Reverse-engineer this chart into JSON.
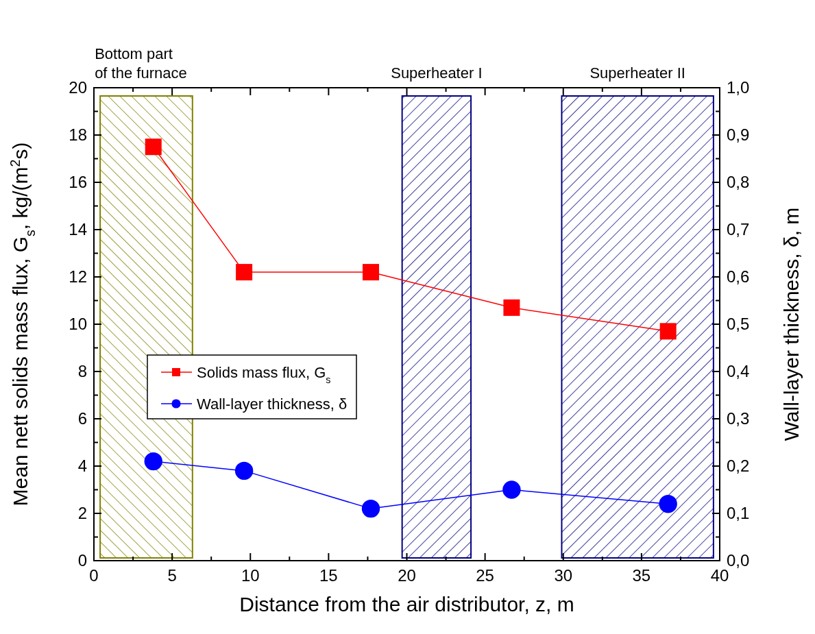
{
  "chart_data": {
    "type": "line",
    "xlabel": "Distance from the air distributor, z, m",
    "ylabel": "Mean nett solids mass flux, G$_{s}$, kg/(m$^{2}$s)",
    "y2label": "Wall-layer thickness, δ, m",
    "x": [
      3.8,
      9.6,
      17.7,
      26.7,
      36.7
    ],
    "series": [
      {
        "name": "Solids mass flux, G$_{s}$",
        "color": "#ff0000",
        "marker": "square",
        "values": [
          17.5,
          12.2,
          12.2,
          10.7,
          9.7
        ]
      },
      {
        "name": "Wall-layer thickness, δ",
        "color": "#0000ff",
        "marker": "circle",
        "axis": "y2",
        "values": [
          0.21,
          0.19,
          0.11,
          0.15,
          0.12
        ]
      }
    ],
    "xlim": [
      0,
      40
    ],
    "xticks": [
      0,
      {
        "value": 2.5,
        "label": null
      },
      5,
      {
        "value": 7.5,
        "label": null
      },
      10,
      {
        "value": 12.5,
        "label": null
      },
      15,
      {
        "value": 17.5,
        "label": null
      },
      20,
      {
        "value": 22.5,
        "label": null
      },
      25,
      {
        "value": 27.5,
        "label": null
      },
      30,
      {
        "value": 32.5,
        "label": null
      },
      35,
      {
        "value": 37.5,
        "label": null
      },
      40
    ],
    "ylim": [
      0,
      20
    ],
    "yticks": [
      0,
      {
        "value": 1,
        "label": null
      },
      2,
      {
        "value": 3,
        "label": null
      },
      4,
      {
        "value": 5,
        "label": null
      },
      6,
      {
        "value": 7,
        "label": null
      },
      8,
      {
        "value": 9,
        "label": null
      },
      10,
      {
        "value": 11,
        "label": null
      },
      12,
      {
        "value": 13,
        "label": null
      },
      14,
      {
        "value": 15,
        "label": null
      },
      16,
      {
        "value": 17,
        "label": null
      },
      18,
      {
        "value": 19,
        "label": null
      },
      20
    ],
    "y2lim": [
      0,
      1
    ],
    "y2ticks": [
      {
        "value": 0,
        "label": "0,0"
      },
      {
        "value": 0.05,
        "label": null
      },
      {
        "value": 0.1,
        "label": "0,1"
      },
      {
        "value": 0.15,
        "label": null
      },
      {
        "value": 0.2,
        "label": "0,2"
      },
      {
        "value": 0.25,
        "label": null
      },
      {
        "value": 0.3,
        "label": "0,3"
      },
      {
        "value": 0.35,
        "label": null
      },
      {
        "value": 0.4,
        "label": "0,4"
      },
      {
        "value": 0.45,
        "label": null
      },
      {
        "value": 0.5,
        "label": "0,5"
      },
      {
        "value": 0.55,
        "label": null
      },
      {
        "value": 0.6,
        "label": "0,6"
      },
      {
        "value": 0.65,
        "label": null
      },
      {
        "value": 0.7,
        "label": "0,7"
      },
      {
        "value": 0.75,
        "label": null
      },
      {
        "value": 0.8,
        "label": "0,8"
      },
      {
        "value": 0.85,
        "label": null
      },
      {
        "value": 0.9,
        "label": "0,9"
      },
      {
        "value": 0.95,
        "label": null
      },
      {
        "value": 1,
        "label": "1,0"
      }
    ],
    "bands": [
      {
        "axis": "x",
        "from": 0.4,
        "to": 6.3,
        "label": "Bottom part\nof the furnace",
        "color": "#808000"
      },
      {
        "axis": "x",
        "from": 19.7,
        "to": 24.1,
        "label": "Superheater I",
        "color": "#000080"
      },
      {
        "axis": "x",
        "from": 29.9,
        "to": 39.6,
        "label": "Superheater II",
        "color": "#000080"
      }
    ],
    "legend": "center left",
    "grid": false,
    "line_style": "solid"
  }
}
